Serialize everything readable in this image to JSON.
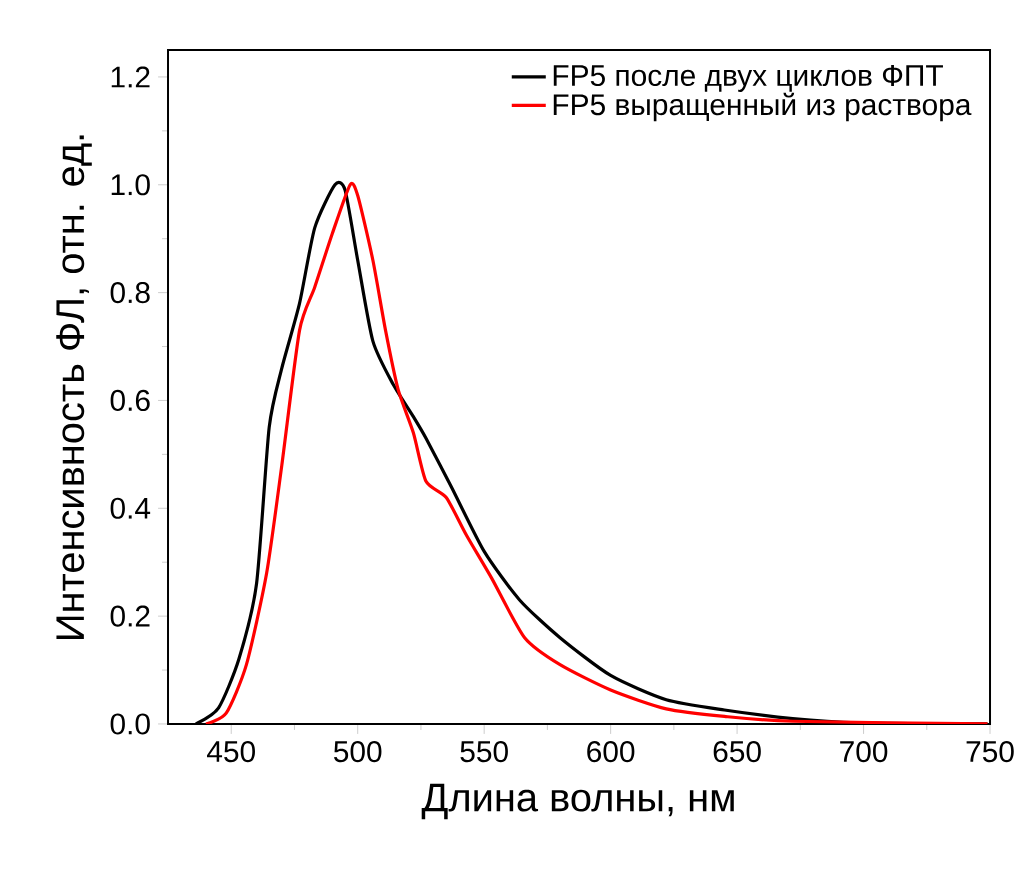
{
  "chart_data": {
    "type": "line",
    "xlabel": "Длина волны, нм",
    "ylabel": "Интенсивность ФЛ, отн. ед.",
    "xlim": [
      425,
      750
    ],
    "ylim": [
      0,
      1.25
    ],
    "xticks": [
      450,
      500,
      550,
      600,
      650,
      700,
      750
    ],
    "yticks": [
      {
        "value": 0,
        "label": "0.0"
      },
      {
        "value": 0.2,
        "label": "0.2"
      },
      {
        "value": 0.4,
        "label": "0.4"
      },
      {
        "value": 0.6,
        "label": "0.6"
      },
      {
        "value": 0.8,
        "label": "0.8"
      },
      {
        "value": 1.0,
        "label": "1.0"
      },
      {
        "value": 1.2,
        "label": "1.2"
      }
    ],
    "legend": "top right",
    "grid": false,
    "marker": "none",
    "line_style": "solid",
    "series": [
      {
        "name": "FP5 после двух циклов ФПТ",
        "color": "#000000",
        "x": [
          436,
          445,
          453,
          460,
          465,
          470,
          477,
          483,
          491,
          495,
          500,
          506,
          514,
          522,
          527,
          537,
          550,
          564,
          580,
          600,
          622,
          645,
          672,
          698,
          749
        ],
        "values": [
          0,
          0.03,
          0.12,
          0.26,
          0.55,
          0.66,
          0.78,
          0.92,
          1.0,
          0.99,
          0.86,
          0.71,
          0.63,
          0.57,
          0.53,
          0.44,
          0.32,
          0.23,
          0.16,
          0.09,
          0.045,
          0.026,
          0.01,
          0.002,
          0
        ]
      },
      {
        "name": "FP5 выращенный из раствора",
        "color": "#ff0000",
        "x": [
          440,
          448,
          456,
          464,
          470,
          477,
          483,
          490,
          497,
          500,
          506,
          511,
          516,
          522,
          527,
          535,
          543,
          553,
          566,
          580,
          600,
          622,
          645,
          672,
          749
        ],
        "values": [
          0,
          0.02,
          0.11,
          0.28,
          0.48,
          0.73,
          0.81,
          0.91,
          1.0,
          0.98,
          0.86,
          0.73,
          0.62,
          0.54,
          0.45,
          0.42,
          0.35,
          0.27,
          0.16,
          0.11,
          0.063,
          0.028,
          0.014,
          0.005,
          0
        ]
      }
    ]
  }
}
